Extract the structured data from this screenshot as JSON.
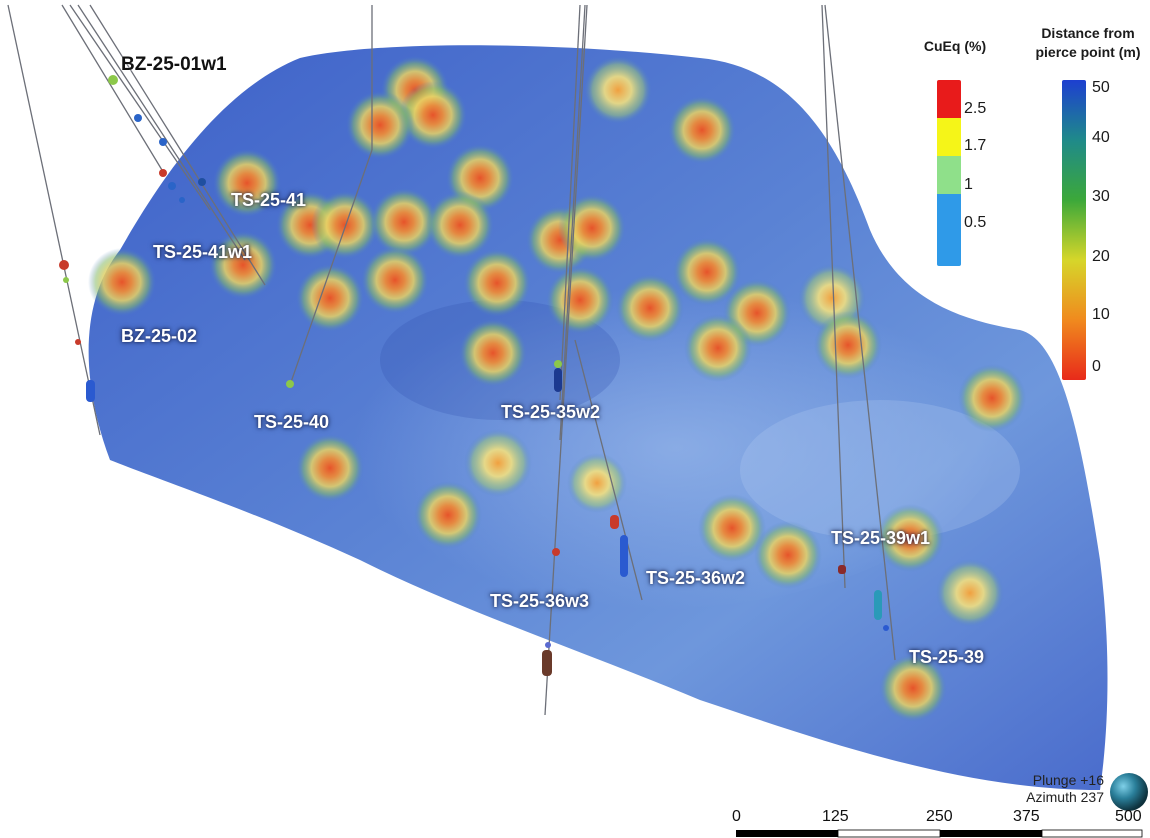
{
  "holes": [
    {
      "name": "BZ-25-01w1"
    },
    {
      "name": "TS-25-41"
    },
    {
      "name": "TS-25-41w1"
    },
    {
      "name": "BZ-25-02"
    },
    {
      "name": "TS-25-40"
    },
    {
      "name": "TS-25-35w2"
    },
    {
      "name": "TS-25-36w2"
    },
    {
      "name": "TS-25-36w3"
    },
    {
      "name": "TS-25-39w1"
    },
    {
      "name": "TS-25-39"
    }
  ],
  "legend_cueq": {
    "title": "CuEq (%)",
    "ticks": [
      "2.5",
      "1.7",
      "1",
      "0.5"
    ],
    "colors": [
      "#e81b1b",
      "#f5f518",
      "#8fe08a",
      "#2f9ae8"
    ]
  },
  "legend_distance": {
    "title_line1": "Distance from",
    "title_line2": "pierce point (m)",
    "ticks": [
      "50",
      "40",
      "30",
      "20",
      "10",
      "0"
    ]
  },
  "view": {
    "plunge": "Plunge +16",
    "azimuth": "Azimuth 237"
  },
  "scale_bar": {
    "ticks": [
      "0",
      "125",
      "250",
      "375",
      "500"
    ]
  }
}
